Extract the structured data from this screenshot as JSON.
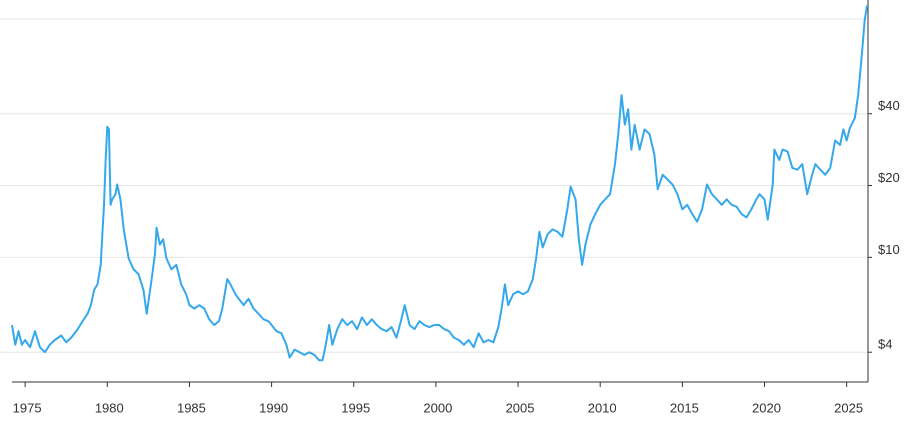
{
  "chart_data": {
    "type": "line",
    "log_scale": true,
    "grid": true,
    "color": "#35a8ec",
    "x": [
      1974.2,
      1974.4,
      1974.6,
      1974.8,
      1975.0,
      1975.3,
      1975.6,
      1975.9,
      1976.2,
      1976.5,
      1976.8,
      1977.2,
      1977.5,
      1977.8,
      1978.2,
      1978.5,
      1978.8,
      1979.0,
      1979.2,
      1979.4,
      1979.6,
      1979.7,
      1979.8,
      1979.9,
      1980.0,
      1980.1,
      1980.2,
      1980.3,
      1980.5,
      1980.6,
      1980.8,
      1981.0,
      1981.3,
      1981.6,
      1981.9,
      1982.2,
      1982.4,
      1982.7,
      1982.9,
      1983.0,
      1983.2,
      1983.4,
      1983.6,
      1983.9,
      1984.2,
      1984.5,
      1984.8,
      1985.0,
      1985.3,
      1985.6,
      1985.9,
      1986.2,
      1986.5,
      1986.8,
      1987.0,
      1987.3,
      1987.5,
      1987.8,
      1988.0,
      1988.3,
      1988.6,
      1988.9,
      1989.2,
      1989.5,
      1989.8,
      1990.0,
      1990.3,
      1990.6,
      1990.9,
      1991.1,
      1991.4,
      1991.7,
      1992.0,
      1992.3,
      1992.6,
      1992.9,
      1993.1,
      1993.3,
      1993.5,
      1993.7,
      1994.0,
      1994.3,
      1994.6,
      1994.9,
      1995.2,
      1995.5,
      1995.8,
      1996.1,
      1996.4,
      1996.7,
      1997.0,
      1997.3,
      1997.6,
      1997.9,
      1998.1,
      1998.4,
      1998.7,
      1999.0,
      1999.3,
      1999.6,
      1999.9,
      2000.2,
      2000.5,
      2000.8,
      2001.1,
      2001.4,
      2001.7,
      2002.0,
      2002.3,
      2002.6,
      2002.9,
      2003.2,
      2003.5,
      2003.8,
      2004.0,
      2004.2,
      2004.4,
      2004.7,
      2005.0,
      2005.3,
      2005.6,
      2005.9,
      2006.1,
      2006.3,
      2006.5,
      2006.8,
      2007.1,
      2007.4,
      2007.7,
      2008.0,
      2008.2,
      2008.5,
      2008.7,
      2008.9,
      2009.1,
      2009.4,
      2009.7,
      2010.0,
      2010.3,
      2010.6,
      2010.9,
      2011.1,
      2011.3,
      2011.5,
      2011.7,
      2011.9,
      2012.1,
      2012.4,
      2012.7,
      2013.0,
      2013.3,
      2013.5,
      2013.8,
      2014.1,
      2014.4,
      2014.7,
      2015.0,
      2015.3,
      2015.6,
      2015.9,
      2016.2,
      2016.5,
      2016.8,
      2017.1,
      2017.4,
      2017.7,
      2018.0,
      2018.3,
      2018.6,
      2018.9,
      2019.2,
      2019.5,
      2019.7,
      2020.0,
      2020.2,
      2020.5,
      2020.6,
      2020.9,
      2021.1,
      2021.4,
      2021.7,
      2022.0,
      2022.3,
      2022.6,
      2022.9,
      2023.1,
      2023.4,
      2023.7,
      2024.0,
      2024.3,
      2024.6,
      2024.8,
      2025.0,
      2025.2,
      2025.5,
      2025.7,
      2025.9,
      2026.0,
      2026.1,
      2026.25
    ],
    "values": [
      5.2,
      4.3,
      4.9,
      4.3,
      4.5,
      4.2,
      4.9,
      4.2,
      4.0,
      4.3,
      4.5,
      4.7,
      4.4,
      4.6,
      5.0,
      5.4,
      5.8,
      6.3,
      7.3,
      7.7,
      9.3,
      12.5,
      16.6,
      25.6,
      35.3,
      34.4,
      16.6,
      17.5,
      18.4,
      20.2,
      17.5,
      13.1,
      9.9,
      8.9,
      8.5,
      7.3,
      5.8,
      8.1,
      10.3,
      13.3,
      11.3,
      11.9,
      9.9,
      8.9,
      9.3,
      7.7,
      7.0,
      6.3,
      6.1,
      6.3,
      6.1,
      5.5,
      5.2,
      5.4,
      6.1,
      8.1,
      7.7,
      7.0,
      6.7,
      6.3,
      6.7,
      6.1,
      5.8,
      5.5,
      5.4,
      5.2,
      4.9,
      4.8,
      4.3,
      3.8,
      4.1,
      4.0,
      3.9,
      4.0,
      3.9,
      3.7,
      3.7,
      4.3,
      5.2,
      4.3,
      5.0,
      5.5,
      5.2,
      5.4,
      5.0,
      5.6,
      5.2,
      5.5,
      5.2,
      5.0,
      4.9,
      5.1,
      4.6,
      5.5,
      6.3,
      5.2,
      5.0,
      5.4,
      5.2,
      5.1,
      5.2,
      5.2,
      5.0,
      4.9,
      4.6,
      4.5,
      4.3,
      4.5,
      4.2,
      4.8,
      4.4,
      4.5,
      4.4,
      5.1,
      6.1,
      7.7,
      6.3,
      7.0,
      7.2,
      7.0,
      7.2,
      8.1,
      9.9,
      12.8,
      11.0,
      12.5,
      13.1,
      12.8,
      12.2,
      15.9,
      19.8,
      17.5,
      11.9,
      9.3,
      11.3,
      13.7,
      15.2,
      16.6,
      17.5,
      18.4,
      24.6,
      32.9,
      47.9,
      36.0,
      41.8,
      28.3,
      36.0,
      28.3,
      34.4,
      32.9,
      26.9,
      19.3,
      22.2,
      21.2,
      20.2,
      18.4,
      15.9,
      16.6,
      15.2,
      14.1,
      15.9,
      20.2,
      18.4,
      17.5,
      16.6,
      17.5,
      16.6,
      16.3,
      15.2,
      14.7,
      15.9,
      17.5,
      18.4,
      17.5,
      14.4,
      20.2,
      28.3,
      25.6,
      28.3,
      27.8,
      23.7,
      23.3,
      24.6,
      18.4,
      22.2,
      24.6,
      23.3,
      22.2,
      23.7,
      30.9,
      29.6,
      34.4,
      30.9,
      34.9,
      38.4,
      47.9,
      67.6,
      81.8,
      99,
      114
    ],
    "xlim": [
      1974.2,
      2026.3
    ],
    "xticks": [
      1975,
      1980,
      1985,
      1990,
      1995,
      2000,
      2005,
      2010,
      2015,
      2020,
      2025
    ],
    "ylim": [
      3.0,
      120
    ],
    "yticks": [
      {
        "value": 4,
        "label": "$4"
      },
      {
        "value": 10,
        "label": "$10"
      },
      {
        "value": 20,
        "label": "$20"
      },
      {
        "value": 40,
        "label": "$40"
      }
    ],
    "ygrid": [
      4,
      10,
      20,
      40,
      100
    ]
  }
}
